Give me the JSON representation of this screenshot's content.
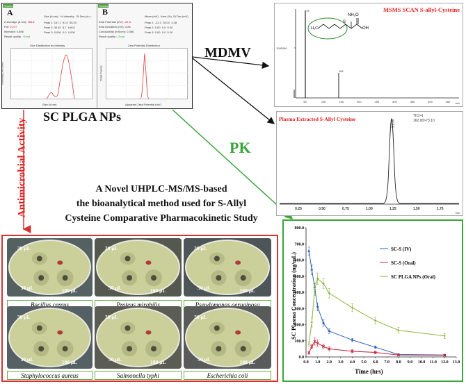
{
  "dls_panel": {
    "label_a": "A",
    "label_b": "B",
    "results_a": "Results",
    "results_b": "Results",
    "z_average_label": "Z-Average (d.nm):",
    "z_average_value": "154.6",
    "pdi_label": "PdI:",
    "pdi_value": "0.277",
    "intercept_label": "Intercept:",
    "intercept_value": "0.896",
    "result_quality_label": "Result quality :",
    "result_quality_value": "Good",
    "size_headers": [
      "Size (d.nm):",
      "% Intensity:",
      "St Dev (d.n..."
    ],
    "size_rows": [
      [
        "Peak 1:",
        "147.1",
        "91.0",
        "55.20"
      ],
      [
        "Peak 2:",
        "35.52",
        "8.7",
        "8.602"
      ],
      [
        "Peak 3:",
        "0.000",
        "0.0",
        "0.000"
      ]
    ],
    "zeta_potential_label": "Zeta Potential (mV):",
    "zeta_potential_value": "-22.3",
    "zeta_deviation_label": "Zeta Deviation (mV):",
    "zeta_deviation_value": "4.28",
    "conductivity_label": "Conductivity (mS/cm):",
    "conductivity_value": "0.366",
    "zeta_headers": [
      "Mean (mV)",
      "Area (%)",
      "St Dev (mV)"
    ],
    "zeta_rows": [
      [
        "Peak 1:",
        "-22.3",
        "100.0",
        "4.28"
      ],
      [
        "Peak 2:",
        "0.00",
        "0.0",
        "0.00"
      ],
      [
        "Peak 3:",
        "0.00",
        "0.0",
        "0.00"
      ]
    ],
    "size_chart_title": "Size Distribution by Intensity",
    "size_chart_xlabel": "Size (d.nm)",
    "size_chart_ylabel": "Intensity (Percent)",
    "zeta_chart_title": "Zeta Potential Distribution",
    "zeta_chart_xlabel": "Apparent Zeta Potential (mV)",
    "zeta_chart_ylabel": "Total Counts"
  },
  "nanoparticle_title": "SC PLGA NPs",
  "mdmv_label": "MDMV",
  "pk_label": "PK",
  "antimicrobial_label": "Antimicrobial Activity",
  "main_title_lines": [
    "A Novel UHPLC-MS/MS-based",
    "the bioanalytical method used for S-Allyl",
    "Cysteine Comparative Pharmacokinetic Study"
  ],
  "msms": {
    "title": "MSMS SCAN S-allyl-Cysteine",
    "y_tick": "1000000",
    "x_ticks": [
      "50",
      "100",
      "150",
      "200",
      "250",
      "300",
      "350",
      "400",
      "450"
    ],
    "x_unit": "m/z",
    "molecule_nh2": "NH₂",
    "molecule_oh": "OH",
    "molecule_o": "O",
    "molecule_s": "S",
    "molecule_h2c": "H₂C"
  },
  "chromatogram": {
    "title": "Plasma Extracted  S-Allyl Cysteine",
    "tic_label": "TIC(+)",
    "transition": "162.00>73.10",
    "peak_label": "1.216",
    "x_ticks": [
      "0.25",
      "0.50",
      "0.75",
      "1.00",
      "1.25",
      "1.50",
      "1.75"
    ],
    "x_unit": "min"
  },
  "plates": [
    {
      "caption": "Bacillus cereus",
      "v30": "30 µL",
      "v50": "50 µL",
      "v100": "100 µL"
    },
    {
      "caption": "Proteus mirabilis",
      "v30": "30 µL",
      "v50": "50 µL",
      "v100": "100 µL"
    },
    {
      "caption": "Pseudomonas aeruginosa",
      "v30": "30 µL",
      "v50": "50 µL",
      "v100": "100 µL"
    },
    {
      "caption": "Staphylococcus aureus",
      "v30": "30 µL",
      "v50": "50 µL",
      "v100": "100 µL"
    },
    {
      "caption": "Salmonella typhi",
      "v30": "30 µL",
      "v50": "50 µL",
      "v100": "100 µL"
    },
    {
      "caption": "Escherichia coli",
      "v30": "30 µL",
      "v50": "50 µL",
      "v100": "100 µL"
    }
  ],
  "colors": {
    "iv": "#2e63b8",
    "oral": "#c0233a",
    "plga": "#8db33a",
    "green_border": "#3aa63a",
    "red_border": "#d63232",
    "red_text": "#e0201e"
  },
  "chart_data": {
    "type": "line",
    "title": "",
    "xlabel": "Time (hrs)",
    "ylabel": "SC Plasma   Concentration (ng/mL)",
    "xlim": [
      0,
      13
    ],
    "ylim": [
      0,
      800
    ],
    "x_ticks": [
      "0.0",
      "1.0",
      "2.0",
      "3.0",
      "4.0",
      "5.0",
      "6.0",
      "7.0",
      "8.0",
      "9.0",
      "10.0",
      "11.0",
      "12.0",
      "13.0"
    ],
    "y_ticks": [
      "0.0",
      "100.0",
      "200.0",
      "300.0",
      "400.0",
      "500.0",
      "600.0",
      "700.0",
      "800.0"
    ],
    "legend_position": "top-right",
    "series": [
      {
        "name": "SC-S (IV)",
        "color": "#2e63b8",
        "marker": "diamond",
        "x": [
          0.25,
          0.5,
          0.75,
          1.0,
          1.5,
          2.0,
          4.0,
          6.0,
          8.0,
          12.0
        ],
        "y": [
          655,
          540,
          430,
          310,
          210,
          160,
          105,
          60,
          15,
          12
        ],
        "err": [
          25,
          30,
          25,
          25,
          20,
          15,
          10,
          8,
          4,
          4
        ]
      },
      {
        "name": "SC-S (Oral)",
        "color": "#c0233a",
        "marker": "x",
        "x": [
          0.25,
          0.5,
          0.75,
          1.0,
          1.5,
          2.0,
          4.0,
          6.0,
          8.0,
          12.0
        ],
        "y": [
          25,
          65,
          95,
          85,
          65,
          50,
          35,
          28,
          12,
          10
        ],
        "err": [
          8,
          12,
          22,
          20,
          15,
          12,
          10,
          8,
          4,
          4
        ]
      },
      {
        "name": "SC PLGA NPs (Oral)",
        "color": "#8db33a",
        "marker": "plus",
        "x": [
          0.25,
          0.5,
          0.75,
          1.0,
          1.5,
          2.0,
          4.0,
          6.0,
          8.0,
          12.0
        ],
        "y": [
          80,
          215,
          420,
          485,
          455,
          395,
          305,
          225,
          165,
          130
        ],
        "err": [
          15,
          30,
          40,
          35,
          30,
          30,
          25,
          20,
          18,
          15
        ]
      }
    ]
  }
}
